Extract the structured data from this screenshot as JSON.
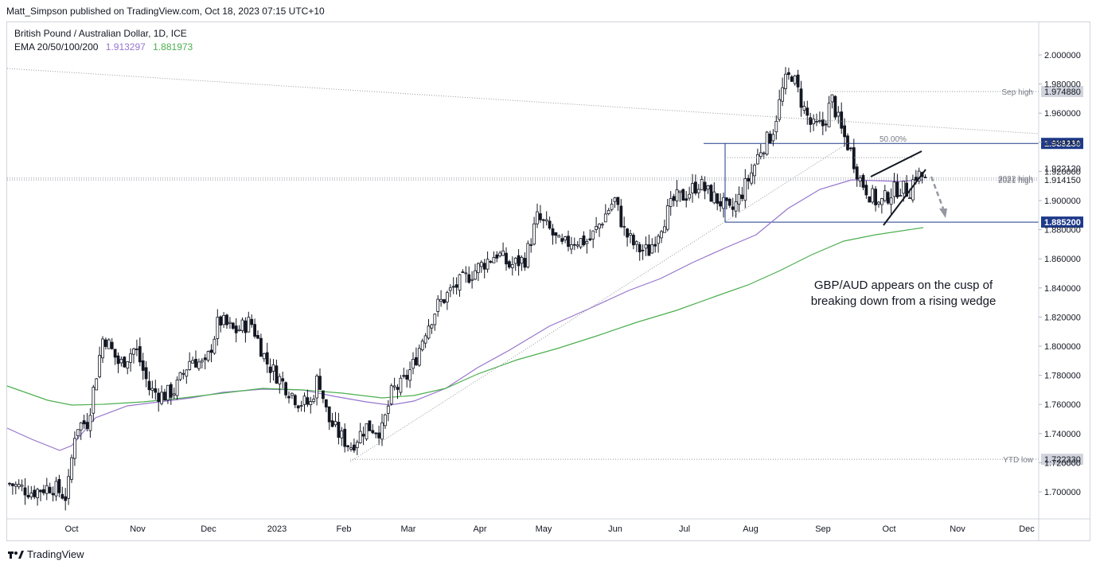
{
  "header": {
    "publisher_line": "Matt_Simpson published on TradingView.com, Oct 18, 2023 07:15 UTC+10"
  },
  "legend": {
    "title": "British Pound / Australian Dollar, 1D, ICE",
    "ema_label": "EMA 20/50/100/200",
    "ema_value_1": "1.913297",
    "ema_value_2": "1.881973",
    "ema_color_1": "#9575cd",
    "ema_color_2": "#4caf50"
  },
  "footer": {
    "brand": "TradingView"
  },
  "chart_data": {
    "type": "candlestick",
    "symbol": "British Pound / Australian Dollar, 1D, ICE",
    "x_ticks": [
      "Oct",
      "Nov",
      "Dec",
      "2023",
      "Feb",
      "Mar",
      "Apr",
      "May",
      "Jun",
      "Jul",
      "Aug",
      "Sep",
      "Oct",
      "Nov",
      "Dec"
    ],
    "y_ticks": [
      "1.700000",
      "1.720000",
      "1.740000",
      "1.760000",
      "1.780000",
      "1.800000",
      "1.820000",
      "1.840000",
      "1.860000",
      "1.880000",
      "1.900000",
      "1.920000",
      "1.940000",
      "1.960000",
      "1.980000",
      "2.000000"
    ],
    "ylim": [
      1.689,
      2.018
    ],
    "levels": [
      {
        "name": "Sep high",
        "value": 1.97488,
        "price_label": "1.974880"
      },
      {
        "name": "",
        "value": 1.93923,
        "price_label": "1.939230"
      },
      {
        "name": "",
        "value": 1.92212,
        "price_label": "1.922120"
      },
      {
        "name": "2022 high",
        "value": 1.91543,
        "price_label": "1.915430"
      },
      {
        "name": "2021 high",
        "value": 1.91415,
        "price_label": "1.914150"
      },
      {
        "name": "",
        "value": 1.8852,
        "price_label": "1.885200"
      },
      {
        "name": "YTD low",
        "value": 1.72233,
        "price_label": "1.722330"
      }
    ],
    "fib_label": "50.00%",
    "annotation": "GBP/AUD appears on the cusp of breaking down from a rising wedge",
    "annotation_lines": [
      "GBP/AUD appears on the cusp of",
      "breaking down from a rising wedge"
    ],
    "ema_series": [
      {
        "name": "EMA 100",
        "color": "#9575cd",
        "last": 1.913297
      },
      {
        "name": "EMA 200",
        "color": "#4caf50",
        "last": 1.881973
      }
    ]
  }
}
